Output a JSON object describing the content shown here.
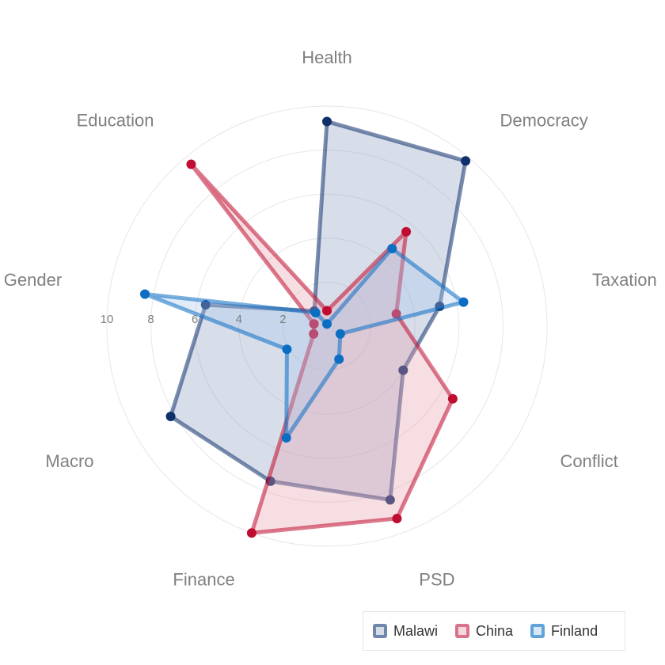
{
  "chart_data": {
    "type": "radar",
    "axes": [
      "Health",
      "Democracy",
      "Taxation",
      "Conflict",
      "PSD",
      "Finance",
      "Macro",
      "Gender",
      "Education"
    ],
    "rlim": [
      0,
      10
    ],
    "ticks": [
      "10",
      "8",
      "6",
      "4",
      "2"
    ],
    "grid": true,
    "legend_position": "bottom-right",
    "series": [
      {
        "name": "Malawi",
        "color": "#0f2f6b",
        "fill": "#8da1c4",
        "values": [
          9.3,
          9.8,
          5.2,
          4.0,
          8.4,
          7.5,
          8.2,
          5.6,
          0.9
        ]
      },
      {
        "name": "China",
        "color": "#c00c30",
        "fill": "#e8a0b0",
        "values": [
          0.7,
          5.6,
          3.2,
          6.6,
          9.3,
          10.0,
          0.7,
          0.6,
          9.6
        ]
      },
      {
        "name": "Finland",
        "color": "#0b6ec2",
        "fill": "#a9c9ec",
        "values": [
          0.1,
          4.6,
          6.3,
          0.7,
          1.6,
          5.4,
          2.1,
          8.4,
          0.8
        ]
      }
    ]
  }
}
